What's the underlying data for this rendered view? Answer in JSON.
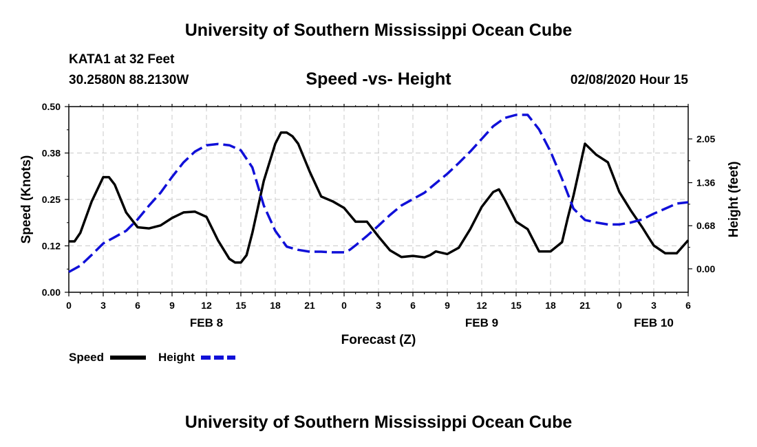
{
  "header": {
    "top_title": "University of Southern Mississippi Ocean Cube",
    "station": "KATA1 at 32 Feet",
    "coords": "30.2580N 88.2130W",
    "subtitle": "Speed -vs- Height",
    "datetime": "02/08/2020 Hour 15",
    "bottom_title": "University of Southern Mississippi Ocean Cube"
  },
  "chart_data": {
    "type": "line",
    "title": "Speed -vs- Height",
    "xlabel": "Forecast (Z)",
    "ylabel": "Speed (Knots)",
    "y2label": "Height (feet)",
    "xlim": [
      0,
      54
    ],
    "ylim": [
      0,
      0.5
    ],
    "y2lim": [
      -0.37,
      2.56
    ],
    "grid": true,
    "x_ticks": [
      0,
      3,
      6,
      9,
      12,
      15,
      18,
      21,
      24,
      27,
      30,
      33,
      36,
      39,
      42,
      45,
      48,
      51,
      54
    ],
    "x_tick_labels": [
      "0",
      "3",
      "6",
      "9",
      "12",
      "15",
      "18",
      "21",
      "0",
      "3",
      "6",
      "9",
      "12",
      "15",
      "18",
      "21",
      "0",
      "3",
      "6"
    ],
    "date_labels": [
      {
        "x": 12,
        "label": "FEB 8"
      },
      {
        "x": 36,
        "label": "FEB 9"
      },
      {
        "x": 51,
        "label": "FEB 10"
      }
    ],
    "y_ticks": [
      0,
      0.125,
      0.25,
      0.375,
      0.5
    ],
    "y_tick_labels": [
      "0.00",
      "0.12",
      "0.25",
      "0.38",
      "0.50"
    ],
    "y2_ticks": [
      0,
      0.68,
      1.36,
      2.05
    ],
    "y2_tick_labels": [
      "0.00",
      "0.68",
      "1.36",
      "2.05"
    ],
    "series": [
      {
        "name": "Speed",
        "axis": "left",
        "color": "#000000",
        "dash": "solid",
        "x": [
          0,
          0.5,
          1,
          2,
          3,
          3.5,
          4,
          5,
          6,
          7,
          8,
          9,
          10,
          11,
          12,
          13,
          14,
          14.5,
          15,
          15.5,
          16,
          17,
          18,
          18.5,
          19,
          19.5,
          20,
          21,
          22,
          23,
          24,
          25,
          26,
          27,
          28,
          29,
          30,
          31,
          31.5,
          32,
          33,
          34,
          35,
          36,
          37,
          37.5,
          38,
          39,
          40,
          41,
          42,
          43,
          43.5,
          44,
          44.5,
          45,
          46,
          47,
          48,
          49,
          50,
          50.5,
          51,
          52,
          53,
          54
        ],
        "values": [
          0.137,
          0.137,
          0.16,
          0.245,
          0.31,
          0.31,
          0.29,
          0.215,
          0.175,
          0.172,
          0.18,
          0.2,
          0.215,
          0.217,
          0.203,
          0.14,
          0.09,
          0.08,
          0.08,
          0.1,
          0.16,
          0.3,
          0.4,
          0.43,
          0.43,
          0.42,
          0.4,
          0.325,
          0.258,
          0.245,
          0.227,
          0.19,
          0.19,
          0.15,
          0.113,
          0.095,
          0.098,
          0.094,
          0.1,
          0.11,
          0.103,
          0.12,
          0.17,
          0.23,
          0.27,
          0.277,
          0.25,
          0.19,
          0.17,
          0.11,
          0.11,
          0.135,
          0.2,
          0.26,
          0.33,
          0.4,
          0.37,
          0.35,
          0.27,
          0.22,
          0.175,
          0.15,
          0.126,
          0.105,
          0.105,
          0.14
        ]
      },
      {
        "name": "Height",
        "axis": "right",
        "color": "#1010d8",
        "dash": "dashed",
        "x": [
          0,
          1,
          2,
          3,
          4,
          5,
          6,
          7,
          8,
          9,
          10,
          11,
          12,
          13,
          14,
          15,
          16,
          17,
          18,
          19,
          20,
          21,
          22,
          23,
          24,
          24.5,
          25,
          26,
          27,
          28,
          29,
          30,
          31,
          32,
          33,
          34,
          35,
          36,
          37,
          38,
          39,
          40,
          41,
          42,
          43,
          44,
          45,
          46,
          47,
          48,
          49,
          50,
          51,
          52,
          53,
          54
        ],
        "values": [
          -0.05,
          0.05,
          0.22,
          0.4,
          0.5,
          0.6,
          0.78,
          1.0,
          1.2,
          1.45,
          1.68,
          1.85,
          1.95,
          1.97,
          1.95,
          1.87,
          1.6,
          1.0,
          0.6,
          0.35,
          0.3,
          0.27,
          0.27,
          0.26,
          0.26,
          0.3,
          0.37,
          0.52,
          0.68,
          0.85,
          1.0,
          1.1,
          1.2,
          1.35,
          1.5,
          1.67,
          1.85,
          2.05,
          2.25,
          2.38,
          2.43,
          2.43,
          2.2,
          1.85,
          1.42,
          0.95,
          0.77,
          0.73,
          0.7,
          0.7,
          0.73,
          0.78,
          0.87,
          0.95,
          1.03,
          1.05
        ]
      }
    ],
    "legend": [
      {
        "label": "Speed",
        "color": "#000000",
        "dash": "solid"
      },
      {
        "label": "Height",
        "color": "#1010d8",
        "dash": "dashed"
      }
    ]
  }
}
